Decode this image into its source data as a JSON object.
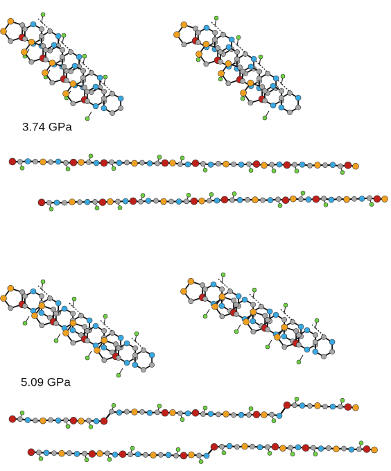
{
  "panels": [
    {
      "label": "3.74 GPa"
    },
    {
      "label": "5.09 GPa"
    }
  ]
}
